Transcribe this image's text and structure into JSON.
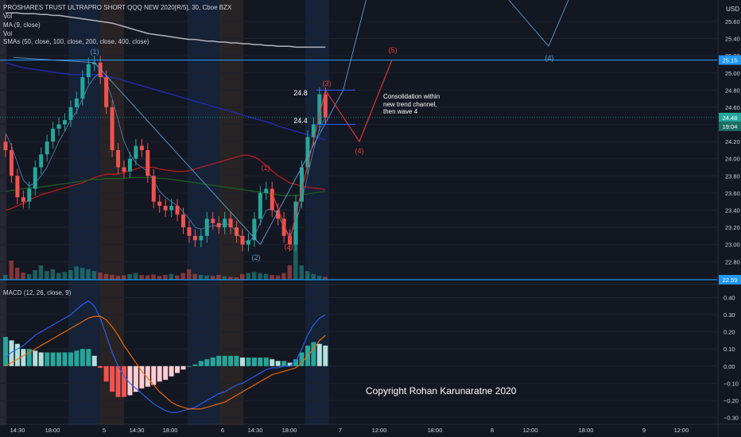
{
  "header": {
    "title": "PROSHARES TRUST ULTRAPRO SHORT QQQ NEW 2020[R/5], 30, Cboe BZX",
    "legend_lines": [
      "Vol",
      "MA (9, close)",
      "Vol",
      "SMAs (50, close, 100, close, 200, close, 400, close)"
    ],
    "macd_legend": "MACD (12, 26, close, 9)",
    "currency": "USD"
  },
  "colors": {
    "background": "#131722",
    "up": "#26a69a",
    "down": "#ef5350",
    "wave_blue": "#2196f3",
    "wave_red": "#e53935",
    "hline": "#2196f3"
  },
  "annotations": {
    "wave_labels_blue": [
      "(1)",
      "(2)",
      "(4)"
    ],
    "wave_labels_red": [
      "(1)",
      "(2)",
      "(3)",
      "(4)",
      "(5)"
    ],
    "level_labels": [
      "24.8",
      "24.4"
    ],
    "note": "Consolidation within\nnew trend channel,\nthen wave 4",
    "copyright": "Copyright Rohan Karunaratne 2020"
  },
  "price_badges": {
    "top_line": "25.15",
    "bottom_line": "22.59",
    "last_price": "24.48",
    "countdown": "19:04"
  },
  "chart_data": [
    {
      "type": "candlestick",
      "title": "PROSHARES TRUST ULTRAPRO SHORT QQQ NEW 2020[R/5], 30, Cboe BZX",
      "ylim": [
        22.59,
        25.72
      ],
      "yticks": [
        "25.60",
        "25.40",
        "25.20",
        "25.00",
        "24.80",
        "24.60",
        "24.40",
        "24.20",
        "24.00",
        "23.80",
        "23.60",
        "23.40",
        "23.20",
        "23.00",
        "22.80"
      ],
      "xticks": [
        "14:30",
        "18:00",
        "5",
        "14:30",
        "18:00",
        "6",
        "14:30",
        "18:00",
        "7",
        "12:00",
        "18:00",
        "8",
        "12:00",
        "18:00",
        "9",
        "12:00"
      ],
      "horizontal_lines": [
        25.15,
        22.59
      ],
      "closes": [
        24.1,
        23.8,
        23.55,
        23.5,
        23.65,
        23.9,
        24.05,
        24.2,
        24.35,
        24.4,
        24.45,
        24.6,
        24.7,
        24.95,
        25.1,
        25.12,
        24.95,
        24.6,
        24.1,
        23.9,
        23.85,
        24.0,
        24.15,
        24.1,
        23.8,
        23.5,
        23.45,
        23.4,
        23.45,
        23.35,
        23.2,
        23.1,
        23.05,
        23.1,
        23.3,
        23.25,
        23.2,
        23.3,
        23.2,
        23.1,
        23.0,
        23.05,
        23.3,
        23.6,
        23.65,
        23.4,
        23.3,
        23.1,
        23.0,
        23.5,
        23.9,
        24.25,
        24.4,
        24.75,
        24.48
      ],
      "volumes": [
        10,
        40,
        25,
        15,
        12,
        20,
        30,
        18,
        22,
        14,
        16,
        20,
        28,
        25,
        22,
        18,
        15,
        12,
        10,
        8,
        9,
        12,
        14,
        10,
        9,
        11,
        8,
        10,
        12,
        9,
        14,
        22,
        12,
        10,
        9,
        8,
        10,
        7,
        6,
        5,
        12,
        14,
        16,
        14,
        12,
        10,
        9,
        14,
        30,
        100,
        30,
        18,
        12,
        8,
        6
      ],
      "ma9": [
        24.3,
        24.15,
        23.95,
        23.75,
        23.68,
        23.72,
        23.8,
        23.9,
        24.05,
        24.2,
        24.32,
        24.45,
        24.55,
        24.7,
        24.85,
        24.95,
        25.0,
        24.9,
        24.7,
        24.45,
        24.2,
        24.05,
        23.95,
        23.9,
        23.85,
        23.75,
        23.62,
        23.55,
        23.5,
        23.45,
        23.38,
        23.3,
        23.2,
        23.18,
        23.2,
        23.22,
        23.22,
        23.25,
        23.22,
        23.15,
        23.05,
        23.02,
        23.1,
        23.25,
        23.4,
        23.42,
        23.35,
        23.2,
        23.1,
        23.25,
        23.5,
        23.8,
        24.1,
        24.35,
        24.48
      ],
      "sma_red": [
        23.4,
        23.42,
        23.45,
        23.48,
        23.52,
        23.55,
        23.58,
        23.6,
        23.62,
        23.64,
        23.66,
        23.68,
        23.7,
        23.72,
        23.75,
        23.78,
        23.8,
        23.82,
        23.82,
        23.82,
        23.84,
        23.86,
        23.88,
        23.9,
        23.9,
        23.9,
        23.88,
        23.87,
        23.86,
        23.85,
        23.85,
        23.86,
        23.88,
        23.9,
        23.92,
        23.94,
        23.96,
        23.98,
        24.0,
        24.02,
        24.04,
        24.04,
        24.02,
        23.98,
        23.92,
        23.86,
        23.8,
        23.76,
        23.72,
        23.7,
        23.68,
        23.67,
        23.66,
        23.65,
        23.64
      ],
      "sma_green": [
        23.62,
        23.63,
        23.64,
        23.65,
        23.66,
        23.66,
        23.67,
        23.68,
        23.69,
        23.7,
        23.71,
        23.72,
        23.73,
        23.74,
        23.75,
        23.76,
        23.76,
        23.77,
        23.77,
        23.77,
        23.77,
        23.78,
        23.78,
        23.78,
        23.78,
        23.78,
        23.77,
        23.77,
        23.76,
        23.75,
        23.74,
        23.73,
        23.72,
        23.71,
        23.7,
        23.69,
        23.68,
        23.67,
        23.66,
        23.65,
        23.64,
        23.63,
        23.62,
        23.61,
        23.6,
        23.59,
        23.58,
        23.57,
        23.57,
        23.57,
        23.58,
        23.59,
        23.6,
        23.61,
        23.62
      ],
      "sma_blue": [
        25.12,
        25.1,
        25.08,
        25.06,
        25.05,
        25.04,
        25.03,
        25.02,
        25.01,
        25.0,
        24.99,
        24.98,
        24.98,
        24.98,
        24.98,
        24.98,
        24.97,
        24.96,
        24.95,
        24.93,
        24.91,
        24.89,
        24.87,
        24.85,
        24.83,
        24.81,
        24.79,
        24.77,
        24.75,
        24.73,
        24.71,
        24.69,
        24.67,
        24.65,
        24.63,
        24.61,
        24.59,
        24.57,
        24.55,
        24.53,
        24.51,
        24.49,
        24.47,
        24.45,
        24.43,
        24.41,
        24.38,
        24.36,
        24.34,
        24.32,
        24.3,
        24.28,
        24.26,
        24.24,
        24.22
      ],
      "sma_white": [
        25.7,
        25.7,
        25.7,
        25.69,
        25.69,
        25.69,
        25.68,
        25.68,
        25.67,
        25.67,
        25.66,
        25.65,
        25.64,
        25.63,
        25.62,
        25.61,
        25.6,
        25.59,
        25.58,
        25.56,
        25.54,
        25.52,
        25.5,
        25.48,
        25.46,
        25.45,
        25.44,
        25.43,
        25.42,
        25.41,
        25.4,
        25.39,
        25.39,
        25.38,
        25.37,
        25.37,
        25.36,
        25.36,
        25.35,
        25.35,
        25.34,
        25.34,
        25.33,
        25.33,
        25.32,
        25.32,
        25.31,
        25.31,
        25.31,
        25.3,
        25.3,
        25.3,
        25.3,
        25.3,
        25.3
      ],
      "wave_blue_path": [
        [
          24,
          25.12
        ],
        [
          64,
          23.0
        ],
        [
          139,
          25.55
        ],
        [
          145,
          25.8
        ],
        [
          139,
          25.55
        ]
      ],
      "wave_red_path": [
        [
          54,
          23.5
        ],
        [
          57,
          23.0
        ],
        [
          65,
          24.8
        ],
        [
          72,
          24.2
        ],
        [
          81,
          25.15
        ]
      ]
    },
    {
      "type": "line",
      "title": "MACD (12, 26, close, 9)",
      "ylim": [
        -0.33,
        0.43
      ],
      "yticks": [
        "0.40",
        "0.30",
        "0.20",
        "0.10",
        "0.00",
        "−0.10",
        "−0.20",
        "−0.30"
      ],
      "series": [
        {
          "name": "MACD",
          "values": [
            0.05,
            0.08,
            0.1,
            0.12,
            0.15,
            0.18,
            0.2,
            0.22,
            0.24,
            0.26,
            0.28,
            0.3,
            0.33,
            0.36,
            0.38,
            0.35,
            0.28,
            0.18,
            0.08,
            0.0,
            -0.06,
            -0.1,
            -0.13,
            -0.16,
            -0.19,
            -0.22,
            -0.24,
            -0.26,
            -0.27,
            -0.27,
            -0.26,
            -0.25,
            -0.24,
            -0.22,
            -0.2,
            -0.18,
            -0.16,
            -0.15,
            -0.13,
            -0.11,
            -0.1,
            -0.08,
            -0.06,
            -0.04,
            -0.02,
            -0.01,
            -0.01,
            0.0,
            0.0,
            0.03,
            0.1,
            0.18,
            0.24,
            0.28,
            0.3
          ]
        },
        {
          "name": "Signal",
          "values": [
            0.0,
            0.02,
            0.04,
            0.06,
            0.08,
            0.1,
            0.12,
            0.14,
            0.16,
            0.18,
            0.2,
            0.22,
            0.24,
            0.26,
            0.28,
            0.29,
            0.29,
            0.27,
            0.23,
            0.18,
            0.12,
            0.07,
            0.02,
            -0.03,
            -0.07,
            -0.11,
            -0.15,
            -0.18,
            -0.21,
            -0.23,
            -0.24,
            -0.25,
            -0.25,
            -0.25,
            -0.24,
            -0.23,
            -0.22,
            -0.21,
            -0.19,
            -0.17,
            -0.15,
            -0.13,
            -0.11,
            -0.09,
            -0.07,
            -0.05,
            -0.04,
            -0.03,
            -0.02,
            -0.01,
            0.02,
            0.06,
            0.1,
            0.15,
            0.18
          ]
        },
        {
          "name": "Histogram",
          "values": [
            0.17,
            0.15,
            0.13,
            0.1,
            0.1,
            0.09,
            0.08,
            0.08,
            0.08,
            0.08,
            0.08,
            0.08,
            0.09,
            0.1,
            0.1,
            0.06,
            -0.01,
            -0.09,
            -0.15,
            -0.18,
            -0.18,
            -0.17,
            -0.15,
            -0.13,
            -0.12,
            -0.11,
            -0.09,
            -0.08,
            -0.06,
            -0.04,
            -0.02,
            0.0,
            0.01,
            0.03,
            0.04,
            0.05,
            0.06,
            0.06,
            0.06,
            0.06,
            0.05,
            0.05,
            0.05,
            0.05,
            0.05,
            0.04,
            0.03,
            0.03,
            0.02,
            0.04,
            0.08,
            0.12,
            0.14,
            0.13,
            0.12
          ]
        }
      ]
    }
  ]
}
